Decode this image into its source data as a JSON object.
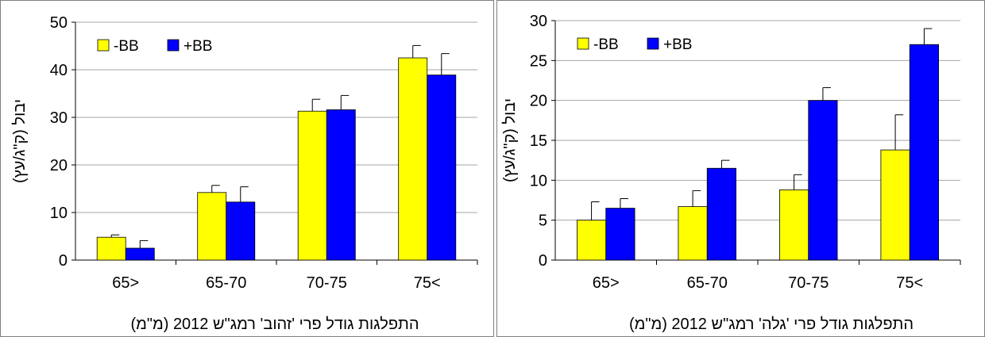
{
  "chart_data": [
    {
      "type": "bar",
      "categories": [
        "65>",
        "65-70",
        "70-75",
        "75<"
      ],
      "series": [
        {
          "name": "-BB",
          "color": "#ffff00",
          "values": [
            4.8,
            14.2,
            31.3,
            42.5
          ],
          "errors": [
            0.5,
            1.5,
            2.5,
            2.6
          ]
        },
        {
          "name": "+BB",
          "color": "#0000ff",
          "values": [
            2.5,
            12.2,
            31.6,
            38.9
          ],
          "errors": [
            1.6,
            3.2,
            3.0,
            4.5
          ]
        }
      ],
      "ylim": [
        0,
        50
      ],
      "yticks": [
        0,
        10,
        20,
        30,
        40,
        50
      ],
      "xlabel": "התפלגות גודל פרי 'זהוב' רמג\"ש 2012 (מ\"מ)",
      "ylabel": "יבול (ק\"ג/עץ)",
      "grid": true,
      "legend": "top-left"
    },
    {
      "type": "bar",
      "categories": [
        "65>",
        "65-70",
        "70-75",
        "75<"
      ],
      "series": [
        {
          "name": "-BB",
          "color": "#ffff00",
          "values": [
            5.0,
            6.7,
            8.8,
            13.8
          ],
          "errors": [
            2.3,
            2.0,
            1.9,
            4.4
          ]
        },
        {
          "name": "+BB",
          "color": "#0000ff",
          "values": [
            6.5,
            11.5,
            20.0,
            27.0
          ],
          "errors": [
            1.2,
            1.0,
            1.6,
            2.0
          ]
        }
      ],
      "ylim": [
        0,
        30
      ],
      "yticks": [
        0,
        5,
        10,
        15,
        20,
        25,
        30
      ],
      "xlabel": "התפלגות גודל פרי 'גלה' רמג\"ש 2012 (מ\"מ)",
      "ylabel": "יבול (ק\"ג/עץ)",
      "grid": true,
      "legend": "top-left"
    }
  ]
}
